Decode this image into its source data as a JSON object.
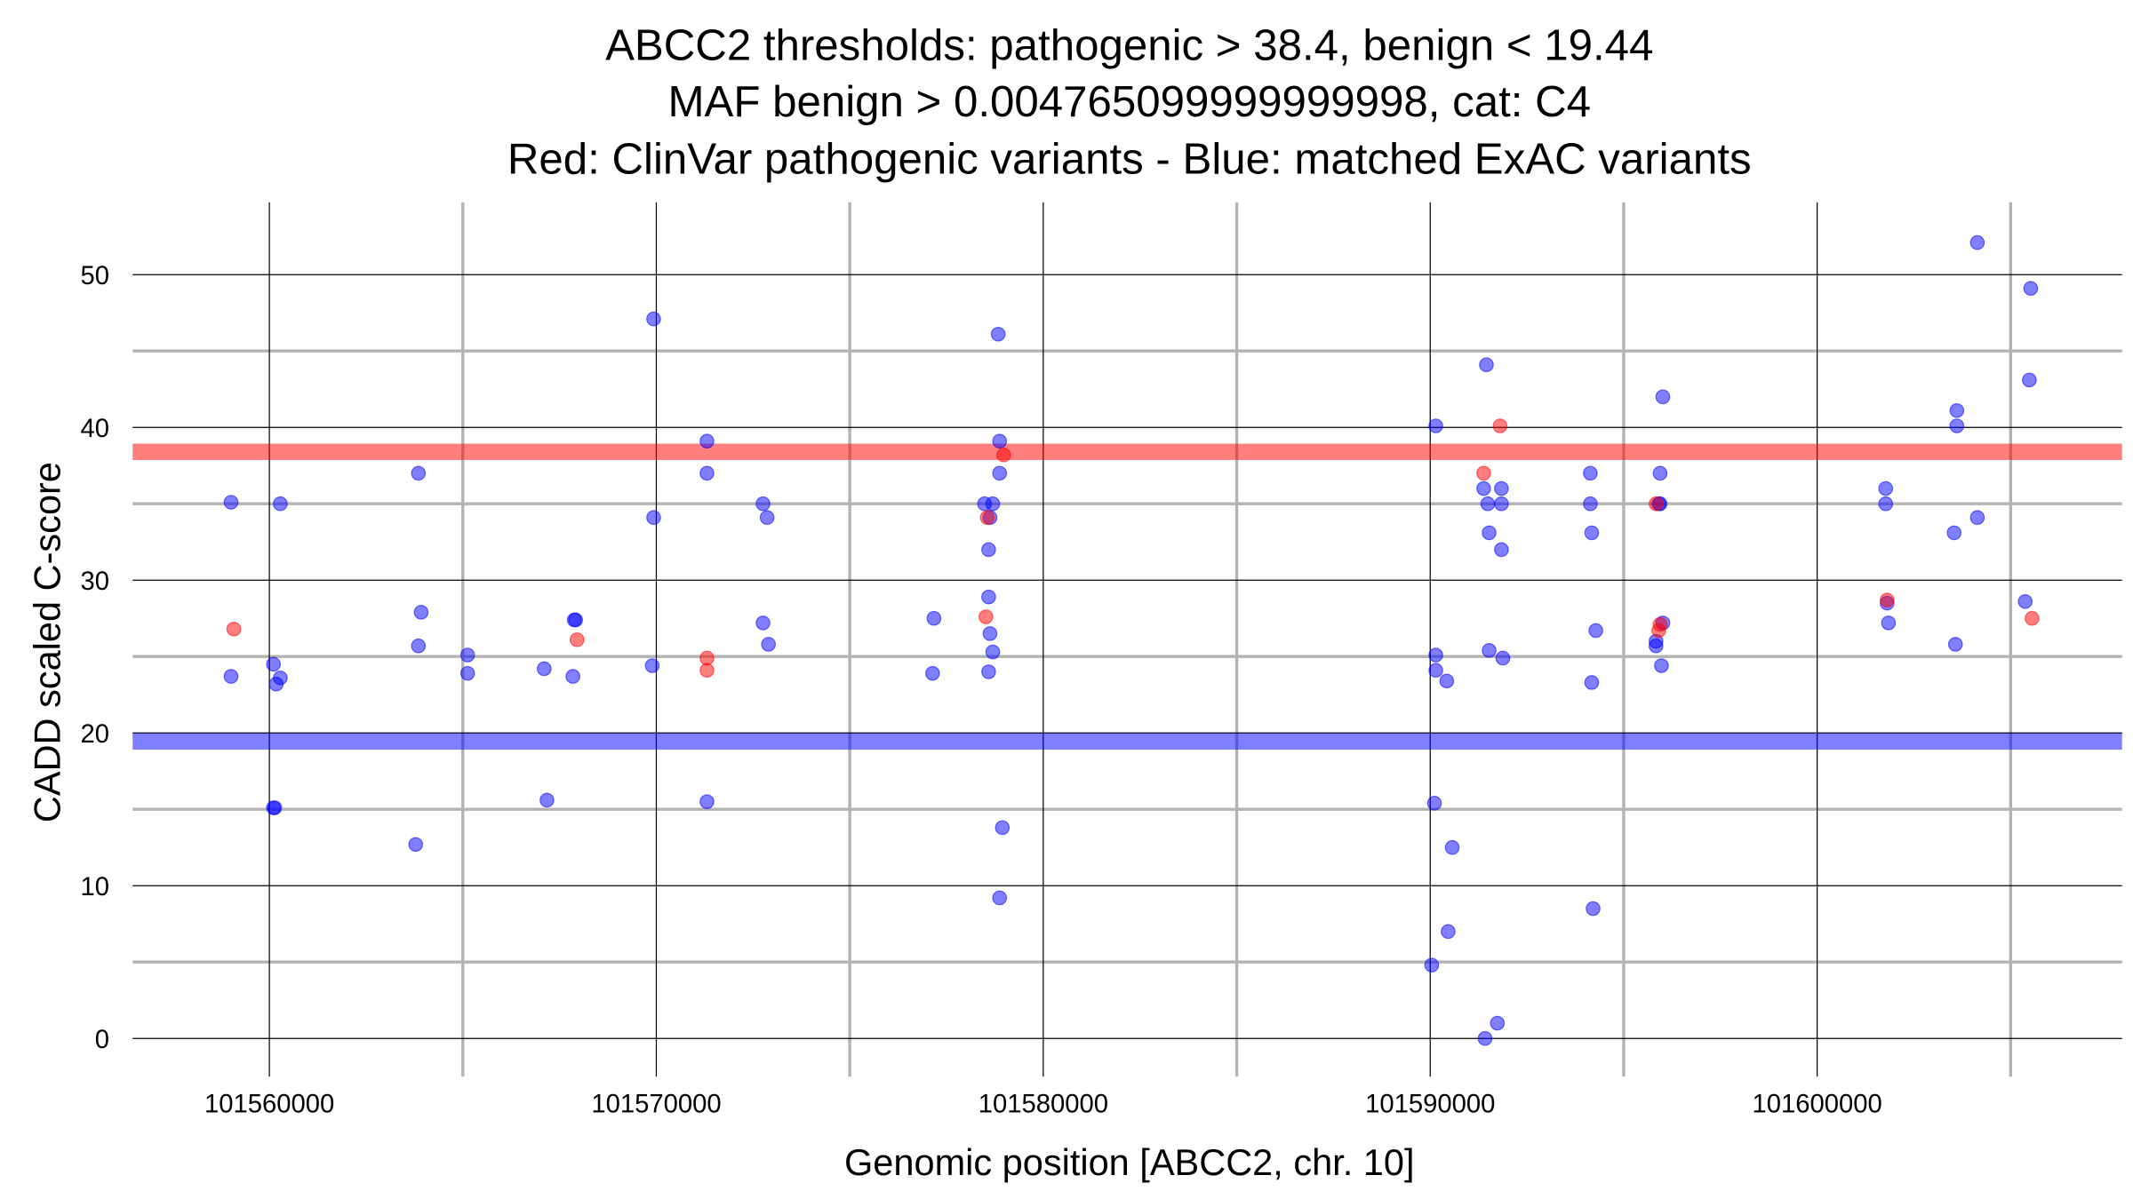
{
  "chart_data": {
    "type": "scatter",
    "title": [
      "ABCC2 thresholds: pathogenic > 38.4, benign < 19.44",
      "MAF benign > 0.004765099999999998, cat: C4",
      "Red: ClinVar pathogenic variants - Blue: matched ExAC variants"
    ],
    "xlabel": "Genomic position [ABCC2, chr. 10]",
    "ylabel": "CADD scaled C-score",
    "xlim": [
      101556500,
      101607800
    ],
    "ylim": [
      -2.5,
      55
    ],
    "xticks": [
      101560000,
      101570000,
      101580000,
      101590000,
      101600000
    ],
    "xtick_labels": [
      "101560000",
      "101570000",
      "101580000",
      "101590000",
      "101600000"
    ],
    "yticks": [
      0,
      10,
      20,
      30,
      40,
      50
    ],
    "ytick_labels": [
      "0",
      "10",
      "20",
      "30",
      "40",
      "50"
    ],
    "grid": true,
    "thresholds": [
      {
        "name": "pathogenic",
        "value": 38.4,
        "color": "#ff0000"
      },
      {
        "name": "benign",
        "value": 19.44,
        "color": "#0000ff"
      }
    ],
    "series": [
      {
        "name": "matched ExAC variants",
        "color": "#0000ff",
        "points": [
          [
            101559010,
            35.1
          ],
          [
            101559010,
            23.7
          ],
          [
            101560106,
            24.5
          ],
          [
            101560177,
            23.2
          ],
          [
            101560283,
            23.6
          ],
          [
            101560283,
            35
          ],
          [
            101560106,
            15.1
          ],
          [
            101560140,
            15.1
          ],
          [
            101563852,
            37
          ],
          [
            101563852,
            25.7
          ],
          [
            101563923,
            27.9
          ],
          [
            101563781,
            12.7
          ],
          [
            101565124,
            25.1
          ],
          [
            101565124,
            23.9
          ],
          [
            101567103,
            24.2
          ],
          [
            101567174,
            15.6
          ],
          [
            101567845,
            23.7
          ],
          [
            101567916,
            27.4
          ],
          [
            101567880,
            27.4
          ],
          [
            101569931,
            47.1
          ],
          [
            101569931,
            34.1
          ],
          [
            101569895,
            24.4
          ],
          [
            101571309,
            39.1
          ],
          [
            101571309,
            37
          ],
          [
            101571309,
            15.5
          ],
          [
            101572758,
            35
          ],
          [
            101572864,
            34.1
          ],
          [
            101572758,
            27.2
          ],
          [
            101572899,
            25.8
          ],
          [
            101577175,
            27.5
          ],
          [
            101577140,
            23.9
          ],
          [
            101578836,
            46.1
          ],
          [
            101578872,
            39.1
          ],
          [
            101578872,
            37
          ],
          [
            101578483,
            35
          ],
          [
            101578695,
            35
          ],
          [
            101578624,
            34.1
          ],
          [
            101578589,
            32
          ],
          [
            101578589,
            28.9
          ],
          [
            101578624,
            26.5
          ],
          [
            101578695,
            25.3
          ],
          [
            101578589,
            24
          ],
          [
            101578942,
            13.8
          ],
          [
            101578872,
            9.2
          ],
          [
            101590145,
            40.1
          ],
          [
            101590145,
            25.1
          ],
          [
            101590145,
            24.1
          ],
          [
            101590428,
            23.4
          ],
          [
            101590110,
            15.4
          ],
          [
            101590570,
            12.5
          ],
          [
            101590463,
            7
          ],
          [
            101590039,
            4.8
          ],
          [
            101591453,
            44.1
          ],
          [
            101591382,
            36
          ],
          [
            101591488,
            35
          ],
          [
            101591841,
            36
          ],
          [
            101591841,
            35
          ],
          [
            101591523,
            33.1
          ],
          [
            101591841,
            32
          ],
          [
            101591523,
            25.4
          ],
          [
            101591877,
            24.9
          ],
          [
            101591735,
            1
          ],
          [
            101591417,
            0
          ],
          [
            101594138,
            37
          ],
          [
            101594138,
            35
          ],
          [
            101594174,
            33.1
          ],
          [
            101594280,
            26.7
          ],
          [
            101594174,
            23.3
          ],
          [
            101594209,
            8.5
          ],
          [
            101596012,
            42
          ],
          [
            101595941,
            37
          ],
          [
            101595941,
            35
          ],
          [
            101595906,
            35
          ],
          [
            101596012,
            27.2
          ],
          [
            101595835,
            26
          ],
          [
            101595835,
            25.7
          ],
          [
            101595976,
            24.4
          ],
          [
            101601772,
            36
          ],
          [
            101601772,
            35
          ],
          [
            101601808,
            28.5
          ],
          [
            101601843,
            27.2
          ],
          [
            101604140,
            52.1
          ],
          [
            101605519,
            49.1
          ],
          [
            101605483,
            43.1
          ],
          [
            101603610,
            41.1
          ],
          [
            101603610,
            40.1
          ],
          [
            101603539,
            33.1
          ],
          [
            101604140,
            34.1
          ],
          [
            101603574,
            25.8
          ],
          [
            101605377,
            28.6
          ]
        ]
      },
      {
        "name": "ClinVar pathogenic variants",
        "color": "#ff0000",
        "points": [
          [
            101559081,
            26.8
          ],
          [
            101567951,
            26.1
          ],
          [
            101571309,
            24.9
          ],
          [
            101571309,
            24.1
          ],
          [
            101578518,
            27.6
          ],
          [
            101578554,
            34.1
          ],
          [
            101578978,
            38.2
          ],
          [
            101591382,
            37
          ],
          [
            101591806,
            40.1
          ],
          [
            101595835,
            35
          ],
          [
            101595906,
            26.7
          ],
          [
            101595941,
            27.1
          ],
          [
            101601808,
            28.7
          ],
          [
            101605554,
            27.5
          ]
        ]
      }
    ]
  }
}
